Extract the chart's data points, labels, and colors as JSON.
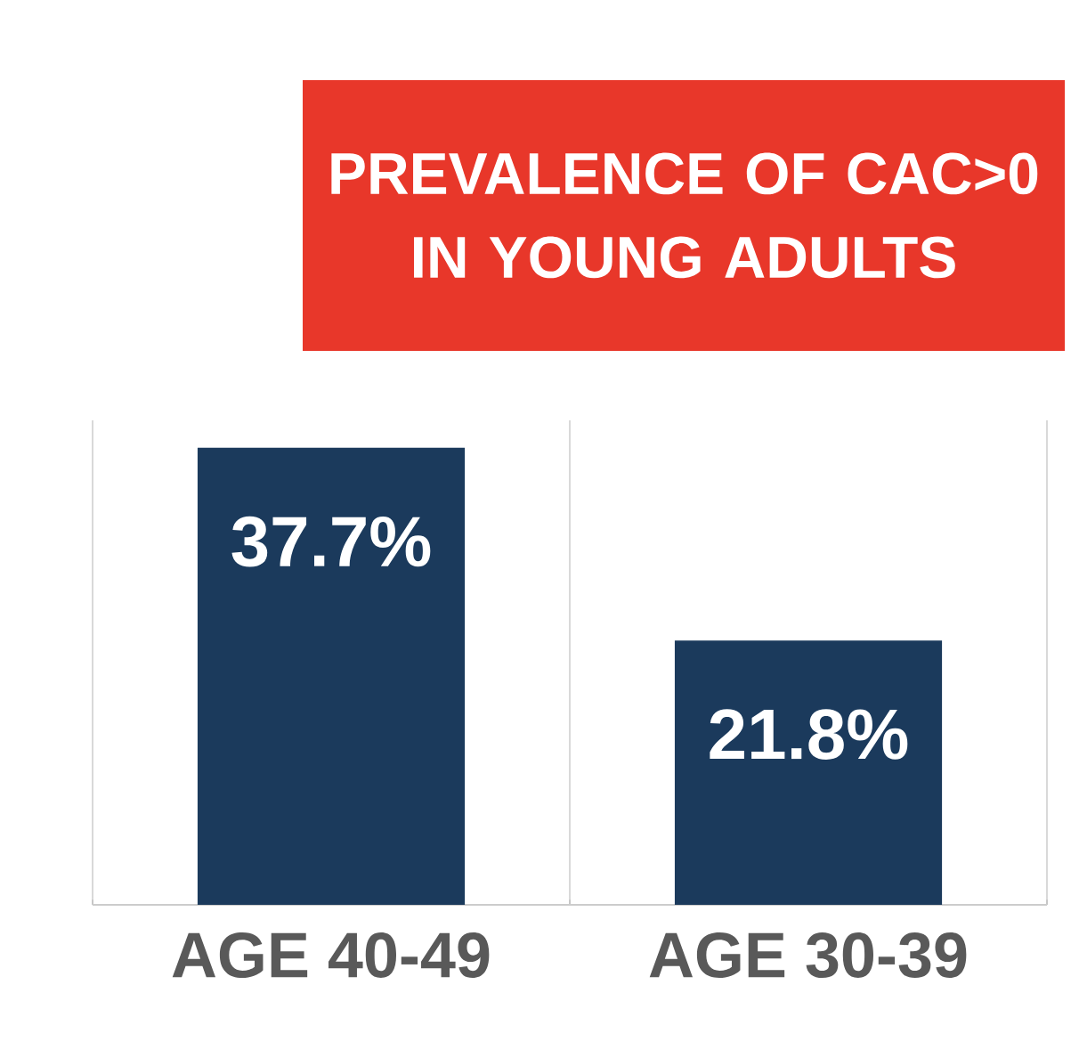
{
  "chart_data": {
    "type": "bar",
    "title": "PREVALENCE OF CAC>0  IN YOUNG ADULTS",
    "categories": [
      "AGE 40-49",
      "AGE 30-39"
    ],
    "values": [
      37.7,
      21.8
    ],
    "value_labels": [
      "37.7%",
      "21.8%"
    ],
    "color": "#1b3a5c",
    "data_labels": true,
    "grid": "x"
  }
}
